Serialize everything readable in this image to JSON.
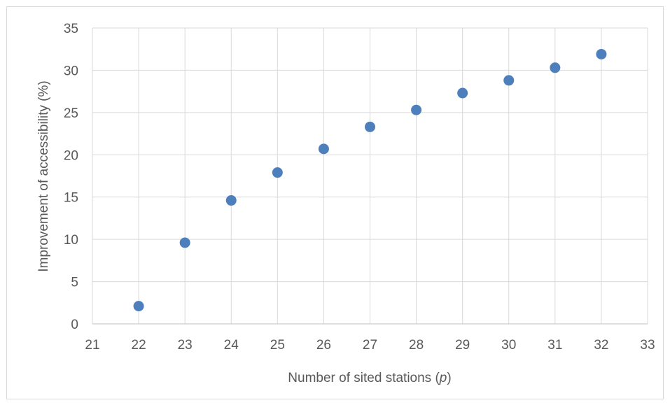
{
  "chart_data": {
    "type": "scatter",
    "title": "",
    "xlabel": "Number of sited stations (p)",
    "xlabel_main": "Number of sited stations (",
    "xlabel_var": "p",
    "xlabel_close": ")",
    "ylabel": "Improvement of accessibility (%)",
    "xlim": [
      21,
      33
    ],
    "ylim": [
      0,
      35
    ],
    "x_ticks": [
      "21",
      "22",
      "23",
      "24",
      "25",
      "26",
      "27",
      "28",
      "29",
      "30",
      "31",
      "32",
      "33"
    ],
    "y_ticks": [
      "0",
      "5",
      "10",
      "15",
      "20",
      "25",
      "30",
      "35"
    ],
    "grid": true,
    "legend": "none",
    "marker_color": "#4e7fbd",
    "series": [
      {
        "x": [
          22,
          23,
          24,
          25,
          26,
          27,
          28,
          29,
          30,
          31,
          32
        ],
        "y": [
          2.1,
          9.6,
          14.6,
          17.9,
          20.7,
          23.3,
          25.3,
          27.3,
          28.8,
          30.3,
          31.9
        ]
      }
    ]
  }
}
